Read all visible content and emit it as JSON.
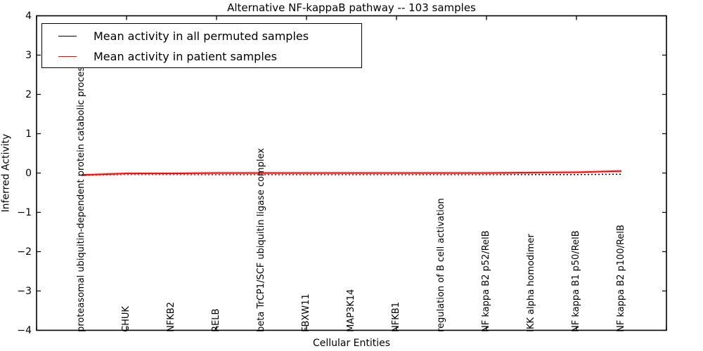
{
  "title": "Alternative NF-kappaB pathway -- 103 samples",
  "xlabel": "Cellular Entities",
  "ylabel": "Inferred Activity",
  "legend": {
    "entries": [
      {
        "label": "Mean activity in all permuted samples",
        "color": "#000000"
      },
      {
        "label": "Mean activity in patient samples",
        "color": "#ff0000"
      }
    ],
    "position": "upper left"
  },
  "colors": {
    "background": "#ffffff",
    "axis": "#000000",
    "permuted_line": "#000000",
    "patient_line": "#ff0000",
    "patient_halo": "#ffb3b3"
  },
  "chart_data": {
    "type": "line",
    "title": "Alternative NF-kappaB pathway -- 103 samples",
    "xlabel": "Cellular Entities",
    "ylabel": "Inferred Activity",
    "ylim": [
      -4,
      4
    ],
    "ytick_labels": [
      "4",
      "3",
      "2",
      "1",
      "0",
      "−1",
      "−2",
      "−3",
      "−4"
    ],
    "grid": false,
    "legend_position": "upper left",
    "categories": [
      "proteasomal ubiquitin-dependent protein catabolic process",
      "CHUK",
      "NFKB2",
      "RELB",
      "beta TrCP1/SCF ubiquitin ligase complex",
      "FBXW11",
      "MAP3K14",
      "NFKB1",
      "regulation of B cell activation",
      "NF kappa B2 p52/RelB",
      "IKK alpha homodimer",
      "NF kappa B1 p50/RelB",
      "NF kappa B2 p100/RelB"
    ],
    "series": [
      {
        "key": "permuted",
        "name": "Mean activity in all permuted samples",
        "color": "#000000",
        "dash": "2 3",
        "width": 1.5,
        "values": [
          -0.06,
          -0.04,
          -0.04,
          -0.04,
          -0.04,
          -0.04,
          -0.04,
          -0.04,
          -0.04,
          -0.04,
          -0.04,
          -0.04,
          -0.03
        ]
      },
      {
        "key": "patient",
        "name": "Mean activity in patient samples",
        "color": "#ff0000",
        "halo": "#ffb3b3",
        "width": 1.9,
        "values": [
          -0.05,
          -0.01,
          -0.01,
          0,
          0,
          0,
          0,
          0,
          0,
          0,
          0.01,
          0.02,
          0.05
        ]
      }
    ]
  }
}
